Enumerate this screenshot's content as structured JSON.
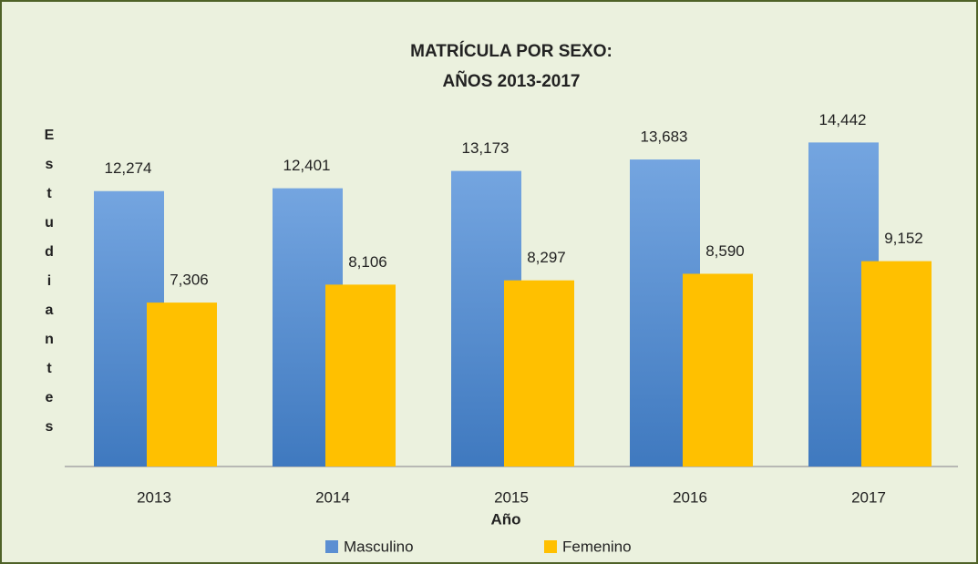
{
  "chart_data": {
    "type": "bar",
    "title": [
      "MATRÍCULA POR SEXO:",
      "AÑOS 2013-2017"
    ],
    "x_label": "Año",
    "y_label": "Estudiantes",
    "categories": [
      "2013",
      "2014",
      "2015",
      "2016",
      "2017"
    ],
    "series": [
      {
        "name": "Masculino",
        "color": "#5b8fd2",
        "values": [
          12274,
          12401,
          13173,
          13683,
          14442
        ],
        "value_labels": [
          "12,274",
          "12,401",
          "13,173",
          "13,683",
          "14,442"
        ]
      },
      {
        "name": "Femenino",
        "color": "#ffc000",
        "values": [
          7306,
          8106,
          8297,
          8590,
          9152
        ],
        "value_labels": [
          "7,306",
          "8,106",
          "8,297",
          "8,590",
          "9,152"
        ]
      }
    ],
    "ylim": [
      0,
      16000
    ],
    "legend": "bottom"
  }
}
